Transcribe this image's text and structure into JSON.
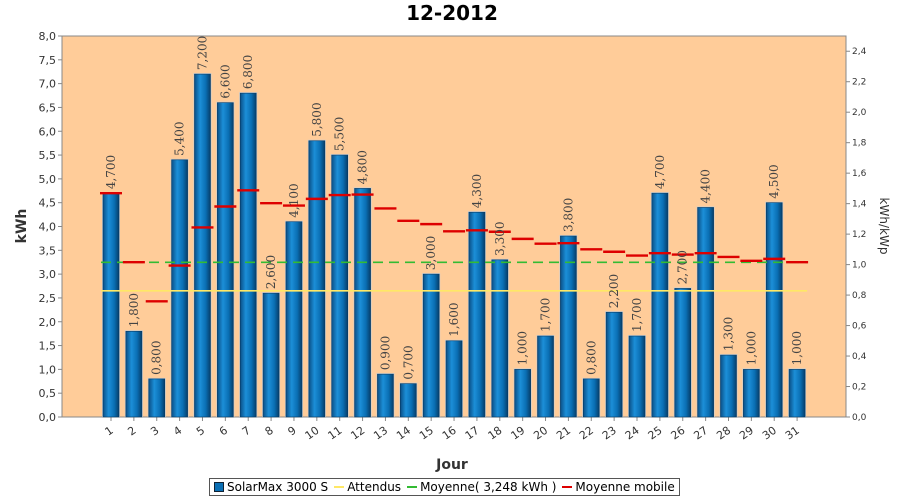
{
  "chart_data": {
    "type": "bar",
    "title": "12-2012",
    "xlabel": "Jour",
    "ylabel": "kWh",
    "ylabel_right": "kWh/kWp",
    "ylim": [
      0,
      8
    ],
    "ylim_right": [
      0,
      2.5
    ],
    "yticks": [
      "0,0",
      "0,5",
      "1,0",
      "1,5",
      "2,0",
      "2,5",
      "3,0",
      "3,5",
      "4,0",
      "4,5",
      "5,0",
      "5,5",
      "6,0",
      "6,5",
      "7,0",
      "7,5",
      "8,0"
    ],
    "yticks_right": [
      "0,0",
      "0,2",
      "0,4",
      "0,6",
      "0,8",
      "1,0",
      "1,2",
      "1,4",
      "1,6",
      "1,8",
      "2,0",
      "2,2",
      "2,4"
    ],
    "categories": [
      "1",
      "2",
      "3",
      "4",
      "5",
      "6",
      "7",
      "8",
      "9",
      "10",
      "11",
      "12",
      "13",
      "14",
      "15",
      "16",
      "17",
      "18",
      "19",
      "20",
      "21",
      "22",
      "23",
      "24",
      "25",
      "26",
      "27",
      "28",
      "29",
      "30",
      "31"
    ],
    "series": [
      {
        "name": "SolarMax 3000 S",
        "kind": "bar",
        "color": "#0a6fb4",
        "values": [
          4.7,
          1.8,
          0.8,
          5.4,
          7.2,
          6.6,
          6.8,
          2.6,
          4.1,
          5.8,
          5.5,
          4.8,
          0.9,
          0.7,
          3.0,
          1.6,
          4.3,
          3.3,
          1.0,
          1.7,
          3.8,
          0.8,
          2.2,
          1.7,
          4.7,
          2.7,
          4.4,
          1.3,
          1.0,
          4.5,
          1.0
        ],
        "labels": [
          "4,700",
          "1,800",
          "0,800",
          "5,400",
          "7,200",
          "6,600",
          "6,800",
          "2,600",
          "4,100",
          "5,800",
          "5,500",
          "4,800",
          "0,900",
          "0,700",
          "3,000",
          "1,600",
          "4,300",
          "3,300",
          "1,000",
          "1,700",
          "3,800",
          "0,800",
          "2,200",
          "1,700",
          "4,700",
          "2,700",
          "4,400",
          "1,300",
          "1,000",
          "4,500",
          "1,000"
        ]
      },
      {
        "name": "Attendus",
        "kind": "hline",
        "color": "#ffe866",
        "value": 2.65
      },
      {
        "name": "Moyenne( 3,248 kWh )",
        "kind": "hline",
        "color": "#33bb33",
        "value": 3.248
      },
      {
        "name": "Moyenne mobile",
        "kind": "step",
        "color": "#dd0000",
        "values": [
          4.7,
          3.25,
          2.43,
          3.18,
          3.98,
          4.42,
          4.76,
          4.49,
          4.44,
          4.58,
          4.66,
          4.67,
          4.38,
          4.12,
          4.05,
          3.9,
          3.92,
          3.89,
          3.74,
          3.64,
          3.65,
          3.52,
          3.47,
          3.39,
          3.44,
          3.41,
          3.44,
          3.36,
          3.28,
          3.32,
          3.25
        ]
      }
    ],
    "legend_position": "bottom",
    "grid": false
  }
}
